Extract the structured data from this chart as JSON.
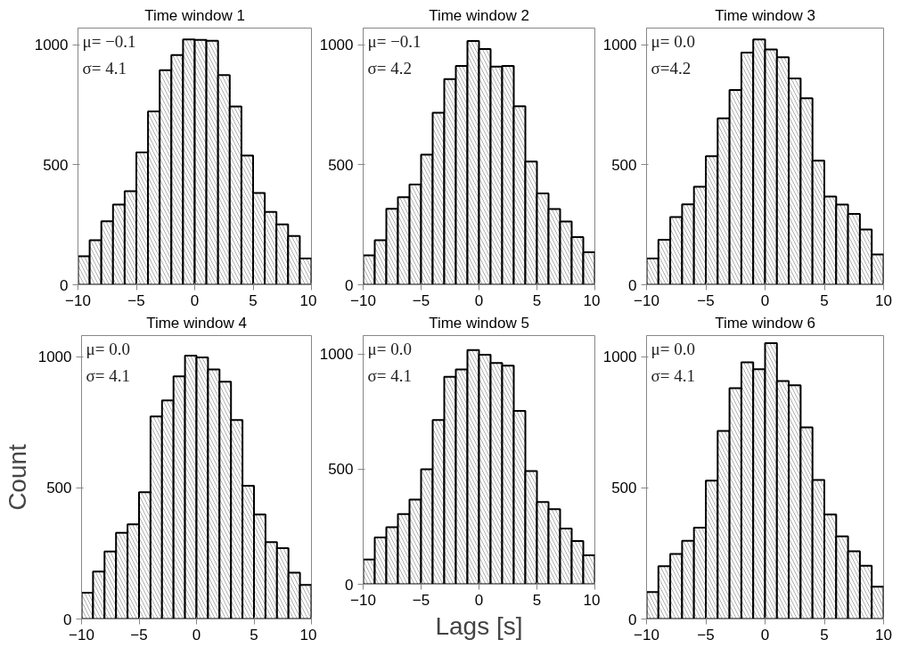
{
  "chart_data": [
    {
      "type": "histogram",
      "title": "Time window 1",
      "bins": [
        -10,
        -9,
        -8,
        -7,
        -6,
        -5,
        -4,
        -3,
        -2,
        -1,
        0,
        1,
        2,
        3,
        4,
        5,
        6,
        7,
        8,
        9,
        10
      ],
      "values": [
        119,
        186,
        265,
        334,
        390,
        552,
        723,
        894,
        958,
        1023,
        1021,
        1017,
        874,
        743,
        539,
        383,
        304,
        252,
        203,
        110
      ],
      "xlim": [
        -10,
        10
      ],
      "ylim": [
        0,
        1070
      ],
      "xticks": [
        -10,
        -5,
        0,
        5,
        10
      ],
      "yticks": [
        0,
        500,
        1000
      ],
      "annotations": [
        "μ= −0.1",
        "σ= 4.1"
      ]
    },
    {
      "type": "histogram",
      "title": "Time window 2",
      "bins": [
        -10,
        -9,
        -8,
        -7,
        -6,
        -5,
        -4,
        -3,
        -2,
        -1,
        0,
        1,
        2,
        3,
        4,
        5,
        6,
        7,
        8,
        9,
        10
      ],
      "values": [
        123,
        186,
        317,
        365,
        418,
        542,
        717,
        857,
        912,
        1016,
        983,
        909,
        912,
        744,
        514,
        381,
        316,
        264,
        199,
        136
      ],
      "xlim": [
        -10,
        10
      ],
      "ylim": [
        0,
        1070
      ],
      "xticks": [
        -10,
        -5,
        0,
        5,
        10
      ],
      "yticks": [
        0,
        500,
        1000
      ],
      "annotations": [
        "μ= −0.1",
        "σ= 4.2"
      ]
    },
    {
      "type": "histogram",
      "title": "Time window 3",
      "bins": [
        -10,
        -9,
        -8,
        -7,
        -6,
        -5,
        -4,
        -3,
        -2,
        -1,
        0,
        1,
        2,
        3,
        4,
        5,
        6,
        7,
        8,
        9,
        10
      ],
      "values": [
        110,
        188,
        282,
        335,
        409,
        536,
        694,
        812,
        968,
        1023,
        981,
        948,
        860,
        777,
        517,
        368,
        334,
        295,
        230,
        126
      ],
      "xlim": [
        -10,
        10
      ],
      "ylim": [
        0,
        1070
      ],
      "xticks": [
        -10,
        -5,
        0,
        5,
        10
      ],
      "yticks": [
        0,
        500,
        1000
      ],
      "annotations": [
        "μ= 0.0",
        "σ=4.2"
      ]
    },
    {
      "type": "histogram",
      "title": "Time window 4",
      "ylabel": "Count",
      "bins": [
        -10,
        -9,
        -8,
        -7,
        -6,
        -5,
        -4,
        -3,
        -2,
        -1,
        0,
        1,
        2,
        3,
        4,
        5,
        6,
        7,
        8,
        9,
        10
      ],
      "values": [
        100,
        181,
        257,
        329,
        361,
        483,
        772,
        833,
        925,
        1004,
        997,
        951,
        904,
        758,
        508,
        398,
        293,
        270,
        177,
        130
      ],
      "xlim": [
        -10,
        10
      ],
      "ylim": [
        0,
        1080
      ],
      "xticks": [
        -10,
        -5,
        0,
        5,
        10
      ],
      "yticks": [
        0,
        500,
        1000
      ],
      "annotations": [
        "μ= 0.0",
        "σ= 4.1"
      ]
    },
    {
      "type": "histogram",
      "title": "Time window 5",
      "xlabel": "Lags [s]",
      "bins": [
        -10,
        -9,
        -8,
        -7,
        -6,
        -5,
        -4,
        -3,
        -2,
        -1,
        0,
        1,
        2,
        3,
        4,
        5,
        6,
        7,
        8,
        9,
        10
      ],
      "values": [
        107,
        203,
        248,
        305,
        368,
        499,
        713,
        901,
        933,
        1017,
        997,
        961,
        949,
        753,
        492,
        357,
        326,
        242,
        188,
        126
      ],
      "xlim": [
        -10,
        10
      ],
      "ylim": [
        0,
        1080
      ],
      "xticks": [
        -10,
        -5,
        0,
        5,
        10
      ],
      "yticks": [
        0,
        500,
        1000
      ],
      "annotations": [
        "μ= 0.0",
        "σ= 4.1"
      ]
    },
    {
      "type": "histogram",
      "title": "Time window 6",
      "bins": [
        -10,
        -9,
        -8,
        -7,
        -6,
        -5,
        -4,
        -3,
        -2,
        -1,
        0,
        1,
        2,
        3,
        4,
        5,
        6,
        7,
        8,
        9,
        10
      ],
      "values": [
        103,
        201,
        248,
        298,
        348,
        527,
        717,
        880,
        978,
        952,
        1051,
        907,
        891,
        730,
        530,
        398,
        315,
        258,
        203,
        123
      ],
      "xlim": [
        -10,
        10
      ],
      "ylim": [
        0,
        1080
      ],
      "xticks": [
        -10,
        -5,
        0,
        5,
        10
      ],
      "yticks": [
        0,
        500,
        1000
      ],
      "annotations": [
        "μ= 0.0",
        "σ= 4.1"
      ]
    }
  ]
}
